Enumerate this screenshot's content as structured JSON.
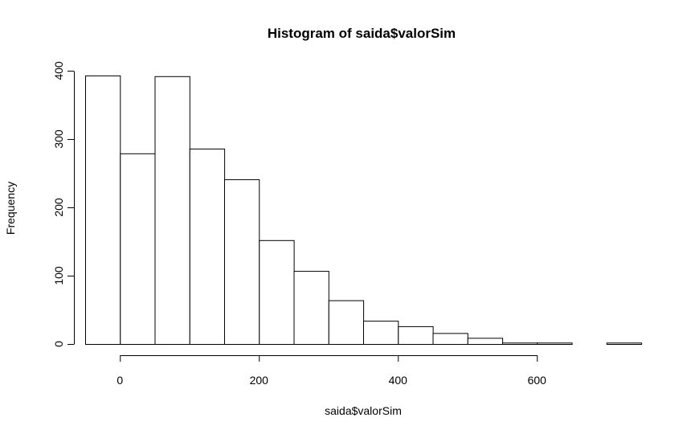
{
  "chart_data": {
    "type": "bar",
    "title": "Histogram of saida$valorSim",
    "xlabel": "saida$valorSim",
    "ylabel": "Frequency",
    "bin_edges": [
      -50,
      0,
      50,
      100,
      150,
      200,
      250,
      300,
      350,
      400,
      450,
      500,
      550,
      600,
      650,
      700,
      750
    ],
    "values": [
      393,
      279,
      392,
      286,
      241,
      152,
      107,
      64,
      34,
      26,
      16,
      9,
      2,
      2,
      0,
      2
    ],
    "xlim": [
      -50,
      750
    ],
    "ylim": [
      0,
      400
    ],
    "x_ticks": [
      0,
      200,
      400,
      600
    ],
    "x_tick_labels": [
      "0",
      "200",
      "400",
      "600"
    ],
    "y_ticks": [
      0,
      100,
      200,
      300,
      400
    ],
    "y_tick_labels": [
      "0",
      "100",
      "200",
      "300",
      "400"
    ],
    "grid": false,
    "legend": "none"
  }
}
